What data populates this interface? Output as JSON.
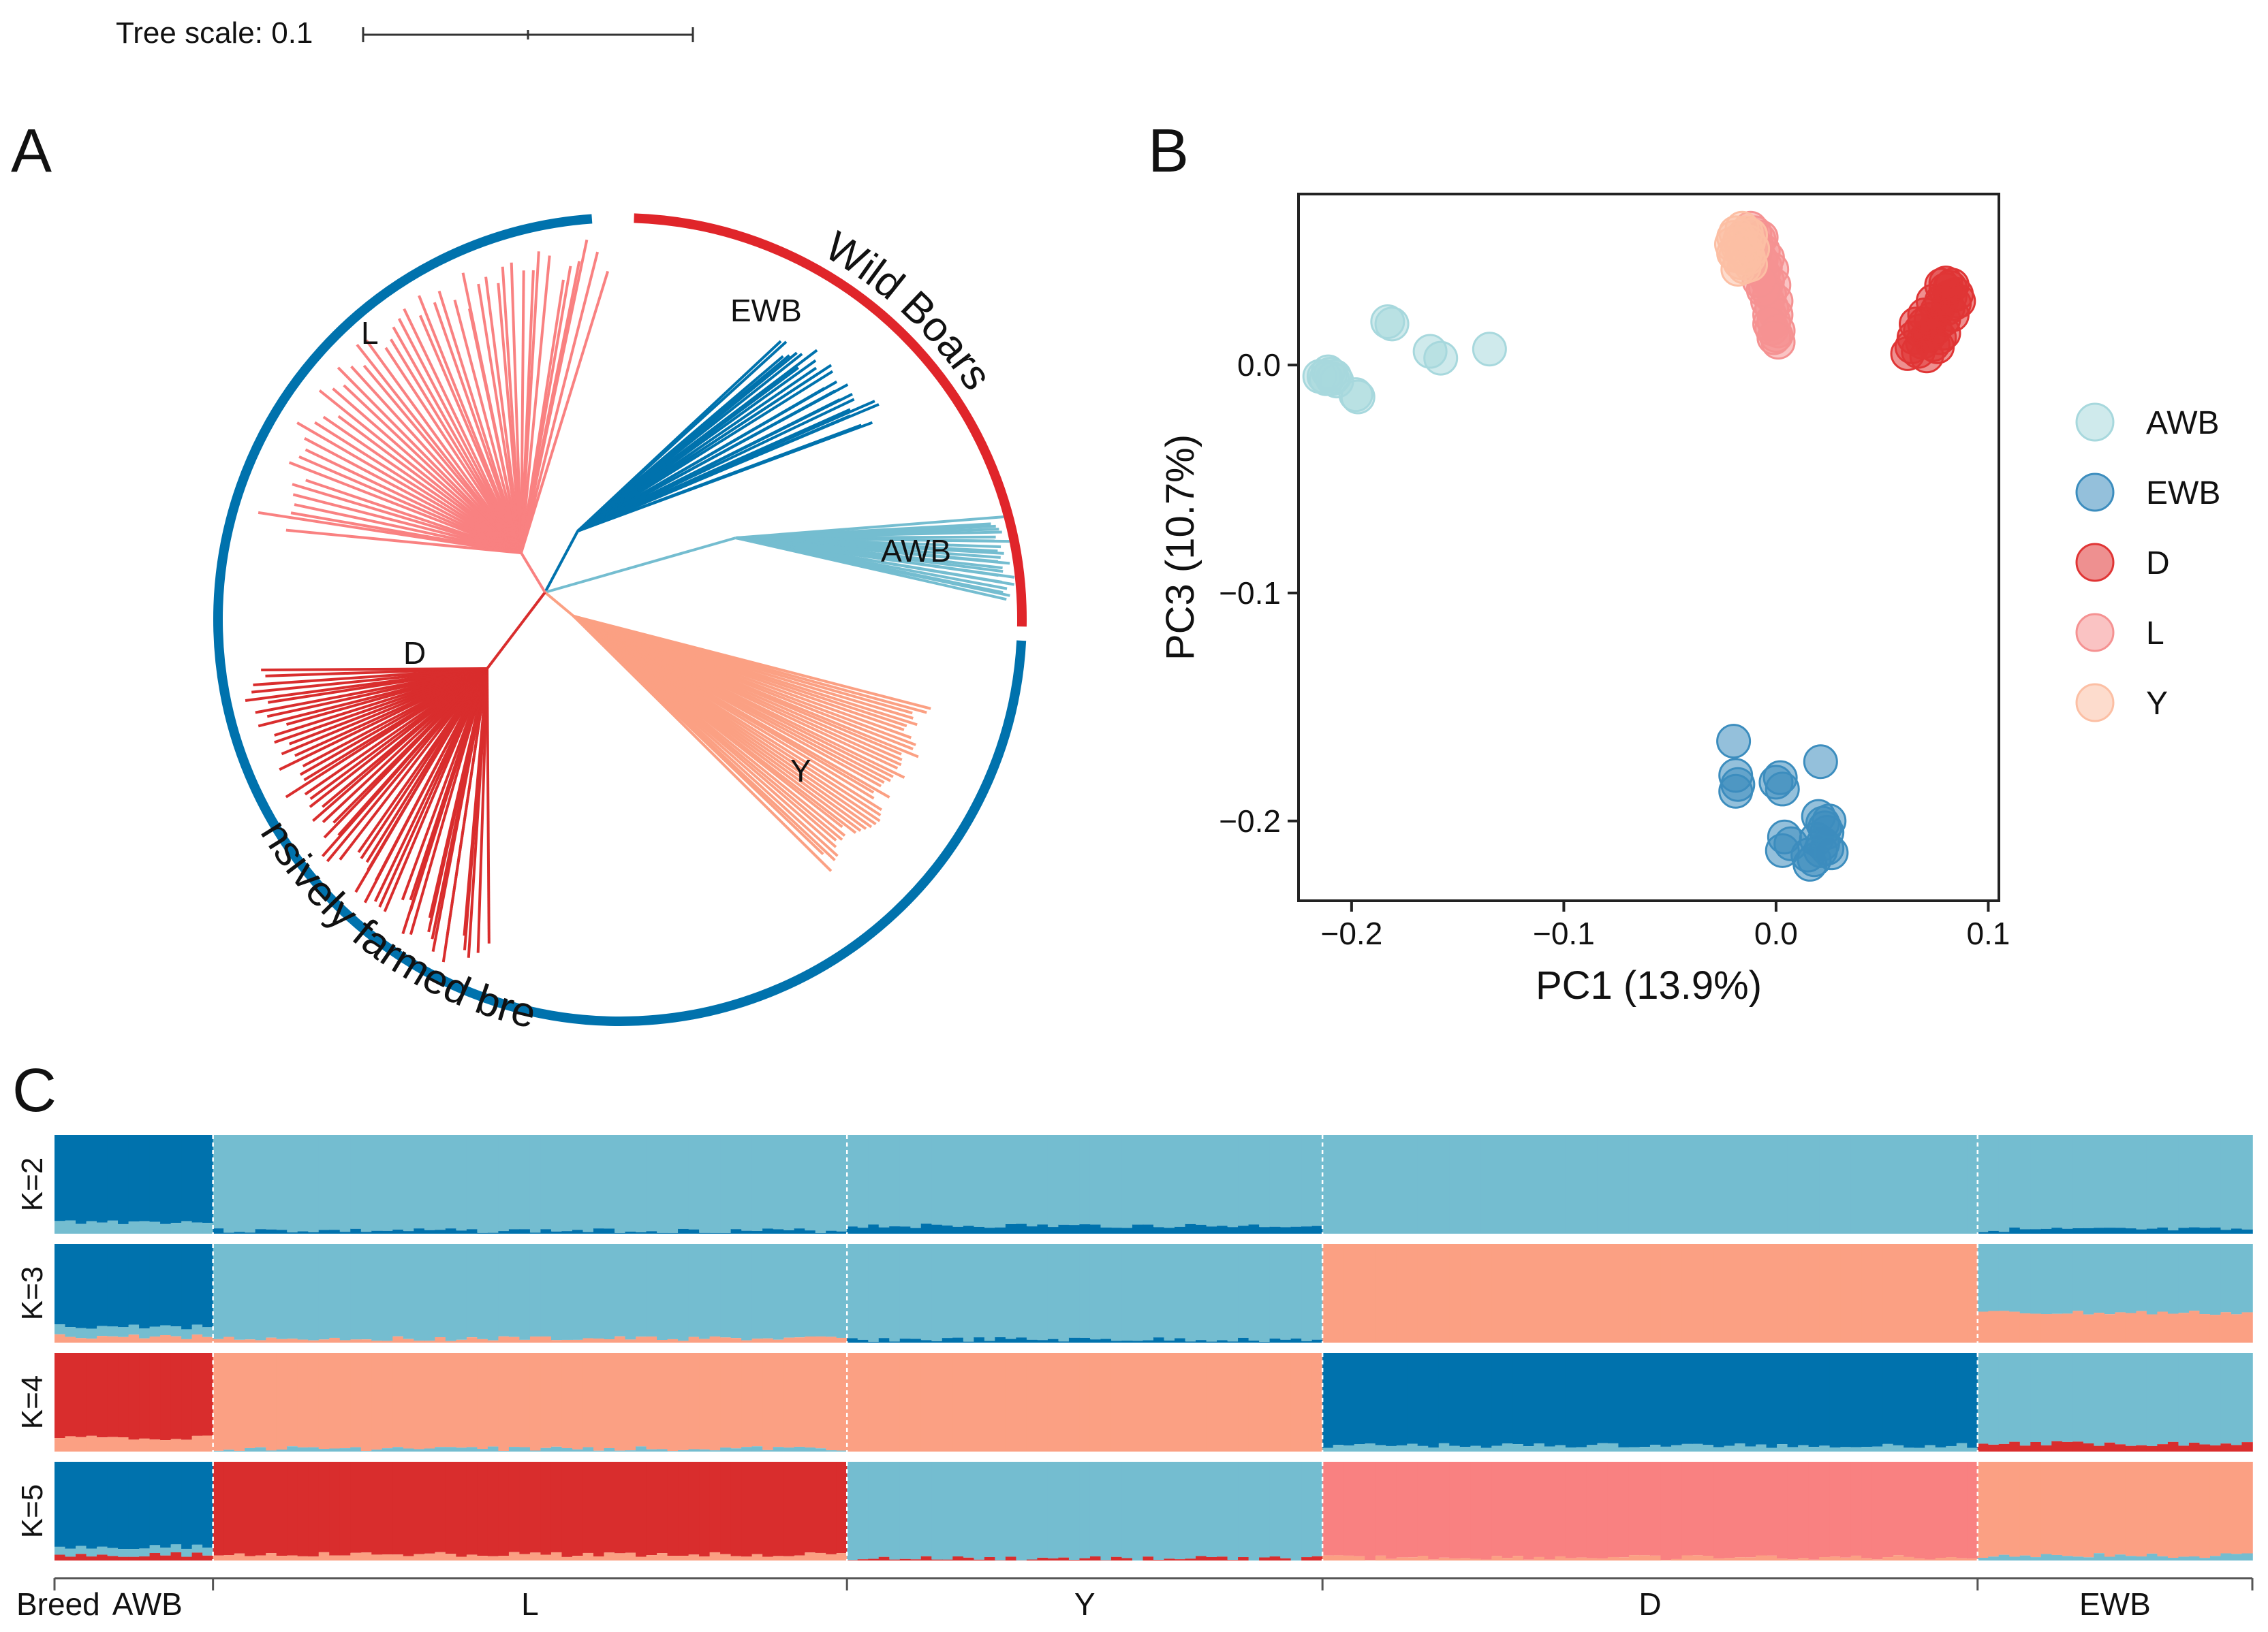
{
  "panels": {
    "a": "A",
    "b": "B",
    "c": "C"
  },
  "tree_scale": {
    "label": "Tree scale: 0.1"
  },
  "tree": {
    "arc_labels": {
      "wild": "Wild Boars",
      "farmed": "Intensively farmed breeds"
    },
    "clades": [
      {
        "name": "EWB",
        "label": "EWB",
        "color": "#0072AD",
        "tips": 26,
        "angle_start": 300,
        "angle_end": 322,
        "r_min": 0.72,
        "r_max": 0.84
      },
      {
        "name": "AWB",
        "label": "AWB",
        "color": "#74BDD0",
        "tips": 24,
        "angle_start": 345,
        "angle_end": 357,
        "r_min": 0.92,
        "r_max": 0.99
      },
      {
        "name": "Y",
        "label": "Y",
        "color": "#FBA083",
        "tips": 40,
        "angle_start": 16,
        "angle_end": 50,
        "r_min": 0.72,
        "r_max": 0.82
      },
      {
        "name": "D",
        "label": "D",
        "color": "#D92D2D",
        "tips": 58,
        "angle_start": 112,
        "angle_end": 172,
        "r_min": 0.82,
        "r_max": 0.96
      },
      {
        "name": "L",
        "label": "L",
        "color": "#F98181",
        "tips": 50,
        "angle_start": 195,
        "angle_end": 268,
        "r_min": 0.8,
        "r_max": 0.95
      }
    ],
    "wild_color": "#E0252A",
    "farmed_color": "#0072AD"
  },
  "chart_data": [
    {
      "type": "scatter",
      "panel": "B",
      "title": "",
      "xlabel": "PC1  (13.9%)",
      "ylabel": "PC3  (10.7%)",
      "xlim": [
        -0.225,
        0.105
      ],
      "ylim": [
        -0.235,
        0.075
      ],
      "x_ticks": [
        -0.2,
        -0.1,
        0.0,
        0.1
      ],
      "x_tick_labels": [
        "−0.2",
        "−0.1",
        "0.0",
        "0.1"
      ],
      "y_ticks": [
        0.0,
        -0.1,
        -0.2
      ],
      "y_tick_labels": [
        "0.0",
        "−0.1",
        "−0.2"
      ],
      "legend_position": "right",
      "series": [
        {
          "name": "AWB",
          "label": "AWB",
          "color": "#A7D8DD",
          "points": [
            [
              -0.215,
              -0.005
            ],
            [
              -0.213,
              -0.005
            ],
            [
              -0.212,
              -0.006
            ],
            [
              -0.21,
              -0.004
            ],
            [
              -0.208,
              -0.005
            ],
            [
              -0.207,
              -0.007
            ],
            [
              -0.211,
              -0.003
            ],
            [
              -0.209,
              -0.006
            ],
            [
              -0.198,
              -0.013
            ],
            [
              -0.197,
              -0.014
            ],
            [
              -0.183,
              0.019
            ],
            [
              -0.181,
              0.018
            ],
            [
              -0.163,
              0.006
            ],
            [
              -0.158,
              0.003
            ],
            [
              -0.135,
              0.007
            ]
          ]
        },
        {
          "name": "EWB",
          "label": "EWB",
          "color": "#3C8DBE",
          "points": [
            [
              -0.02,
              -0.165
            ],
            [
              -0.019,
              -0.18
            ],
            [
              -0.018,
              -0.184
            ],
            [
              -0.019,
              -0.187
            ],
            [
              0.0,
              -0.183
            ],
            [
              0.002,
              -0.181
            ],
            [
              0.003,
              -0.186
            ],
            [
              0.021,
              -0.174
            ],
            [
              0.02,
              -0.198
            ],
            [
              0.022,
              -0.201
            ],
            [
              0.023,
              -0.203
            ],
            [
              0.024,
              -0.205
            ],
            [
              0.019,
              -0.208
            ],
            [
              0.022,
              -0.21
            ],
            [
              0.024,
              -0.212
            ],
            [
              0.021,
              -0.213
            ],
            [
              0.015,
              -0.215
            ],
            [
              0.018,
              -0.217
            ],
            [
              0.016,
              -0.219
            ],
            [
              0.004,
              -0.207
            ],
            [
              0.003,
              -0.213
            ],
            [
              0.007,
              -0.21
            ],
            [
              0.026,
              -0.214
            ],
            [
              0.025,
              -0.2
            ]
          ]
        },
        {
          "name": "D",
          "label": "D",
          "color": "#E03535",
          "points": [
            [
              0.062,
              0.005
            ],
            [
              0.064,
              0.008
            ],
            [
              0.065,
              0.012
            ],
            [
              0.067,
              0.006
            ],
            [
              0.068,
              0.015
            ],
            [
              0.069,
              0.01
            ],
            [
              0.07,
              0.018
            ],
            [
              0.071,
              0.004
            ],
            [
              0.072,
              0.013
            ],
            [
              0.073,
              0.02
            ],
            [
              0.074,
              0.009
            ],
            [
              0.075,
              0.016
            ],
            [
              0.076,
              0.024
            ],
            [
              0.077,
              0.012
            ],
            [
              0.078,
              0.028
            ],
            [
              0.079,
              0.02
            ],
            [
              0.08,
              0.033
            ],
            [
              0.081,
              0.025
            ],
            [
              0.082,
              0.03
            ],
            [
              0.083,
              0.035
            ],
            [
              0.084,
              0.027
            ],
            [
              0.085,
              0.031
            ],
            [
              0.078,
              0.035
            ],
            [
              0.08,
              0.036
            ],
            [
              0.082,
              0.034
            ],
            [
              0.086,
              0.028
            ],
            [
              0.074,
              0.028
            ],
            [
              0.07,
              0.022
            ],
            [
              0.066,
              0.018
            ],
            [
              0.076,
              0.008
            ],
            [
              0.079,
              0.014
            ],
            [
              0.083,
              0.022
            ]
          ]
        },
        {
          "name": "L",
          "label": "L",
          "color": "#F59292",
          "points": [
            [
              -0.012,
              0.06
            ],
            [
              -0.01,
              0.058
            ],
            [
              -0.008,
              0.055
            ],
            [
              -0.009,
              0.052
            ],
            [
              -0.006,
              0.05
            ],
            [
              -0.007,
              0.046
            ],
            [
              -0.005,
              0.043
            ],
            [
              -0.006,
              0.04
            ],
            [
              -0.004,
              0.037
            ],
            [
              -0.005,
              0.034
            ],
            [
              -0.003,
              0.031
            ],
            [
              -0.004,
              0.028
            ],
            [
              -0.002,
              0.025
            ],
            [
              -0.003,
              0.022
            ],
            [
              -0.001,
              0.019
            ],
            [
              -0.002,
              0.016
            ],
            [
              0.0,
              0.013
            ],
            [
              0.001,
              0.01
            ],
            [
              -0.002,
              0.042
            ],
            [
              -0.001,
              0.035
            ],
            [
              0.0,
              0.028
            ],
            [
              0.0,
              0.022
            ],
            [
              -0.007,
              0.056
            ],
            [
              -0.004,
              0.047
            ],
            [
              -0.006,
              0.033
            ],
            [
              -0.003,
              0.018
            ],
            [
              0.001,
              0.015
            ],
            [
              -0.008,
              0.037
            ],
            [
              -0.01,
              0.049
            ],
            [
              -0.001,
              0.012
            ]
          ]
        },
        {
          "name": "Y",
          "label": "Y",
          "color": "#FCBFA4",
          "points": [
            [
              -0.02,
              0.056
            ],
            [
              -0.018,
              0.052
            ],
            [
              -0.019,
              0.048
            ],
            [
              -0.017,
              0.045
            ],
            [
              -0.016,
              0.05
            ],
            [
              -0.021,
              0.053
            ],
            [
              -0.014,
              0.058
            ],
            [
              -0.015,
              0.047
            ],
            [
              -0.013,
              0.054
            ],
            [
              -0.012,
              0.044
            ],
            [
              -0.018,
              0.042
            ],
            [
              -0.016,
              0.06
            ],
            [
              -0.014,
              0.05
            ],
            [
              -0.019,
              0.058
            ],
            [
              -0.011,
              0.051
            ],
            [
              -0.017,
              0.055
            ],
            [
              -0.015,
              0.043
            ],
            [
              -0.013,
              0.047
            ],
            [
              -0.02,
              0.049
            ],
            [
              -0.012,
              0.057
            ]
          ]
        }
      ]
    },
    {
      "type": "stacked_bar",
      "panel": "C",
      "x_group_label": "Breed",
      "groups": [
        {
          "name": "AWB",
          "label": "AWB",
          "n": 15
        },
        {
          "name": "L",
          "label": "L",
          "n": 60
        },
        {
          "name": "Y",
          "label": "Y",
          "n": 45
        },
        {
          "name": "D",
          "label": "D",
          "n": 62
        },
        {
          "name": "EWB",
          "label": "EWB",
          "n": 26
        }
      ],
      "rows": [
        {
          "label": "K=2",
          "proportions": {
            "AWB": [
              [
                "#0072AD",
                0.88
              ],
              [
                "#74BDD0",
                0.12
              ]
            ],
            "L": [
              [
                "#74BDD0",
                0.97
              ],
              [
                "#0072AD",
                0.03
              ]
            ],
            "Y": [
              [
                "#74BDD0",
                0.92
              ],
              [
                "#0072AD",
                0.08
              ]
            ],
            "D": [
              [
                "#74BDD0",
                1.0
              ]
            ],
            "EWB": [
              [
                "#74BDD0",
                0.96
              ],
              [
                "#0072AD",
                0.04
              ]
            ]
          }
        },
        {
          "label": "K=3",
          "proportions": {
            "AWB": [
              [
                "#0072AD",
                0.84
              ],
              [
                "#74BDD0",
                0.1
              ],
              [
                "#FBA083",
                0.06
              ]
            ],
            "L": [
              [
                "#74BDD0",
                0.96
              ],
              [
                "#FBA083",
                0.04
              ]
            ],
            "Y": [
              [
                "#74BDD0",
                0.97
              ],
              [
                "#0072AD",
                0.03
              ]
            ],
            "D": [
              [
                "#FBA083",
                1.0
              ]
            ],
            "EWB": [
              [
                "#74BDD0",
                0.7
              ],
              [
                "#FBA083",
                0.3
              ]
            ]
          }
        },
        {
          "label": "K=4",
          "proportions": {
            "AWB": [
              [
                "#D92D2D",
                0.86
              ],
              [
                "#FBA083",
                0.14
              ]
            ],
            "L": [
              [
                "#FBA083",
                0.97
              ],
              [
                "#74BDD0",
                0.03
              ]
            ],
            "Y": [
              [
                "#FBA083",
                1.0
              ]
            ],
            "D": [
              [
                "#0072AD",
                0.94
              ],
              [
                "#74BDD0",
                0.06
              ]
            ],
            "EWB": [
              [
                "#74BDD0",
                0.92
              ],
              [
                "#D92D2D",
                0.08
              ]
            ]
          }
        },
        {
          "label": "K=5",
          "proportions": {
            "AWB": [
              [
                "#0072AD",
                0.86
              ],
              [
                "#74BDD0",
                0.08
              ],
              [
                "#D92D2D",
                0.06
              ]
            ],
            "L": [
              [
                "#D92D2D",
                0.94
              ],
              [
                "#FBA083",
                0.06
              ]
            ],
            "Y": [
              [
                "#74BDD0",
                0.98
              ],
              [
                "#D92D2D",
                0.02
              ]
            ],
            "D": [
              [
                "#F98181",
                0.97
              ],
              [
                "#FBA083",
                0.03
              ]
            ],
            "EWB": [
              [
                "#FBA083",
                0.95
              ],
              [
                "#74BDD0",
                0.05
              ]
            ]
          }
        }
      ]
    }
  ]
}
